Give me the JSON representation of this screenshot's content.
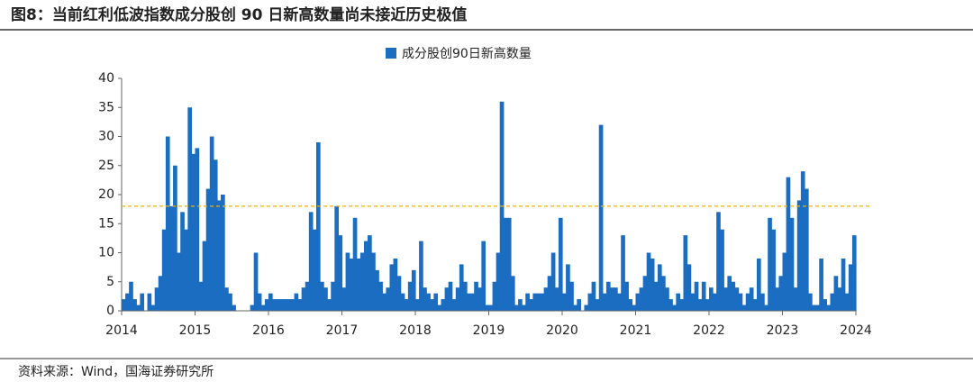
{
  "chart_data": {
    "type": "bar",
    "title": "图8：当前红利低波指数成分股创 90 日新高数量尚未接近历史极值",
    "source": "资料来源：Wind，国海证券研究所",
    "series": [
      {
        "name": "成分股创90日新高数量",
        "color": "#1a6dc0",
        "values": [
          2,
          3,
          5,
          2,
          1,
          3,
          0,
          3,
          1,
          4,
          6,
          14,
          30,
          18,
          25,
          10,
          17,
          14,
          35,
          27,
          28,
          5,
          12,
          21,
          30,
          26,
          19,
          20,
          4,
          3,
          1,
          0,
          0,
          0,
          0,
          1,
          10,
          3,
          1,
          2,
          3,
          2,
          2,
          2,
          2,
          2,
          2,
          3,
          2,
          4,
          5,
          17,
          14,
          29,
          5,
          4,
          2,
          5,
          18,
          13,
          4,
          10,
          9,
          16,
          9,
          10,
          12,
          13,
          10,
          7,
          5,
          3,
          4,
          8,
          9,
          6,
          3,
          2,
          5,
          7,
          2,
          12,
          4,
          3,
          2,
          3,
          1,
          2,
          4,
          5,
          2,
          4,
          8,
          5,
          3,
          3,
          5,
          4,
          12,
          1,
          1,
          5,
          10,
          36,
          16,
          16,
          6,
          1,
          2,
          1,
          3,
          2,
          3,
          3,
          3,
          4,
          6,
          10,
          4,
          16,
          3,
          8,
          5,
          1,
          2,
          0,
          1,
          3,
          5,
          2,
          32,
          3,
          5,
          4,
          4,
          3,
          13,
          5,
          2,
          1,
          3,
          4,
          6,
          10,
          9,
          5,
          8,
          6,
          4,
          2,
          1,
          3,
          2,
          13,
          8,
          3,
          5,
          2,
          5,
          2,
          4,
          3,
          17,
          14,
          4,
          6,
          5,
          4,
          3,
          1,
          3,
          4,
          2,
          9,
          3,
          1,
          16,
          14,
          4,
          6,
          10,
          23,
          16,
          4,
          19,
          24,
          21,
          3,
          1,
          1,
          9,
          2,
          1,
          3,
          6,
          4,
          9,
          3,
          8,
          13
        ]
      }
    ],
    "x": [
      2014,
      2014.05,
      2014.1,
      2014.15,
      2014.2,
      2014.25,
      2014.3,
      2014.35,
      2014.4,
      2014.45,
      2014.5,
      2014.55,
      2014.6,
      2014.65,
      2014.7,
      2014.75,
      2014.8,
      2014.85,
      2014.9,
      2014.95,
      2015,
      2015.05,
      2015.1,
      2015.15,
      2015.2,
      2015.25,
      2015.3,
      2015.35,
      2015.4,
      2015.45,
      2015.5,
      2015.55,
      2015.6,
      2015.65,
      2015.7,
      2015.75,
      2015.8,
      2015.85,
      2015.9,
      2015.95,
      2016,
      2016.05,
      2016.1,
      2016.15,
      2016.2,
      2016.25,
      2016.3,
      2016.35,
      2016.4,
      2016.45,
      2016.5,
      2016.55,
      2016.6,
      2016.65,
      2016.7,
      2016.75,
      2016.8,
      2016.85,
      2016.9,
      2016.95,
      2017,
      2017.05,
      2017.1,
      2017.15,
      2017.2,
      2017.25,
      2017.3,
      2017.35,
      2017.4,
      2017.45,
      2017.5,
      2017.55,
      2017.6,
      2017.65,
      2017.7,
      2017.75,
      2017.8,
      2017.85,
      2017.9,
      2017.95,
      2018,
      2018.05,
      2018.1,
      2018.15,
      2018.2,
      2018.25,
      2018.3,
      2018.35,
      2018.4,
      2018.45,
      2018.5,
      2018.55,
      2018.6,
      2018.65,
      2018.7,
      2018.75,
      2018.8,
      2018.85,
      2018.9,
      2018.95,
      2019,
      2019.05,
      2019.1,
      2019.15,
      2019.2,
      2019.25,
      2019.3,
      2019.35,
      2019.4,
      2019.45,
      2019.5,
      2019.55,
      2019.6,
      2019.65,
      2019.7,
      2019.75,
      2019.8,
      2019.85,
      2019.9,
      2019.95,
      2020,
      2020.05,
      2020.1,
      2020.15,
      2020.2,
      2020.25,
      2020.3,
      2020.35,
      2020.4,
      2020.45,
      2020.5,
      2020.55,
      2020.6,
      2020.65,
      2020.7,
      2020.75,
      2020.8,
      2020.85,
      2020.9,
      2020.95,
      2021,
      2021.05,
      2021.1,
      2021.15,
      2021.2,
      2021.25,
      2021.3,
      2021.35,
      2021.4,
      2021.45,
      2021.5,
      2021.55,
      2021.6,
      2021.65,
      2021.7,
      2021.75,
      2021.8,
      2021.85,
      2021.9,
      2021.95,
      2022,
      2022.05,
      2022.1,
      2022.15,
      2022.2,
      2022.25,
      2022.3,
      2022.35,
      2022.4,
      2022.45,
      2022.5,
      2022.55,
      2022.6,
      2022.65,
      2022.7,
      2022.75,
      2022.8,
      2022.85,
      2022.9,
      2022.95,
      2023,
      2023.05,
      2023.1,
      2023.15,
      2023.2,
      2023.25,
      2023.3,
      2023.35,
      2023.4,
      2023.45,
      2023.5,
      2023.55,
      2023.6,
      2023.65,
      2023.7,
      2023.75,
      2023.8,
      2023.85,
      2023.9,
      2023.95
    ],
    "xlim": [
      2014,
      2024
    ],
    "xticks": [
      2014,
      2015,
      2016,
      2017,
      2018,
      2019,
      2020,
      2021,
      2022,
      2023,
      2024
    ],
    "ylim": [
      0,
      40
    ],
    "yticks": [
      0,
      5,
      10,
      15,
      20,
      25,
      30,
      35,
      40
    ],
    "reference_line": {
      "value": 18,
      "color": "#f0b400",
      "style": "dashed"
    },
    "legend": "top"
  }
}
